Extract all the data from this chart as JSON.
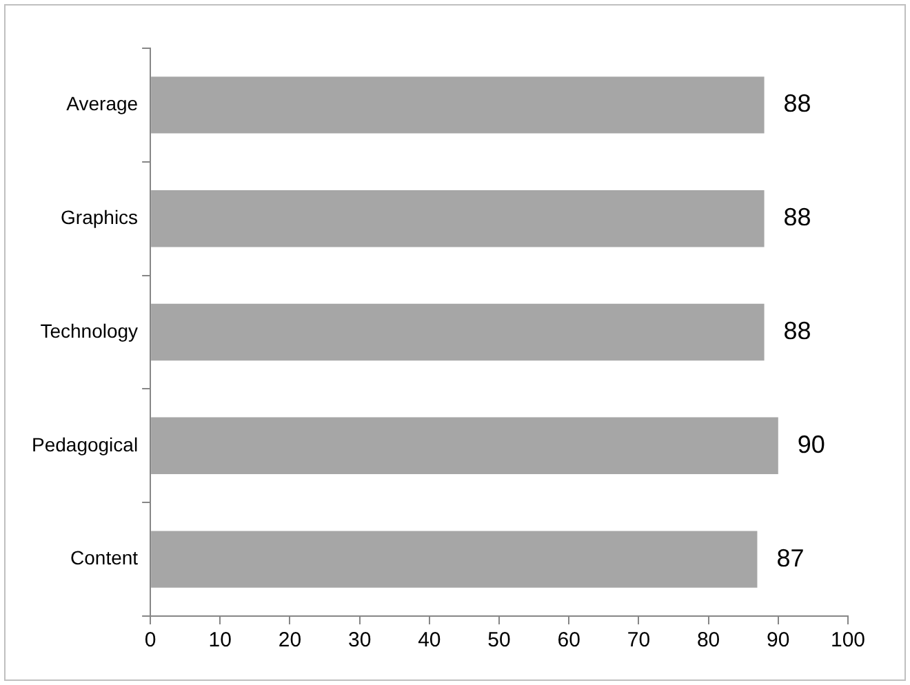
{
  "chart_data": {
    "type": "bar",
    "orientation": "horizontal",
    "categories": [
      "Average",
      "Graphics",
      "Technology",
      "Pedagogical",
      "Content"
    ],
    "values": [
      88,
      88,
      88,
      90,
      87
    ],
    "color": "#a6a6a6",
    "xlim": [
      0,
      100
    ],
    "xticks": [
      0,
      10,
      20,
      30,
      40,
      50,
      60,
      70,
      80,
      90,
      100
    ],
    "grid": false,
    "legend": false,
    "data_labels": true
  }
}
